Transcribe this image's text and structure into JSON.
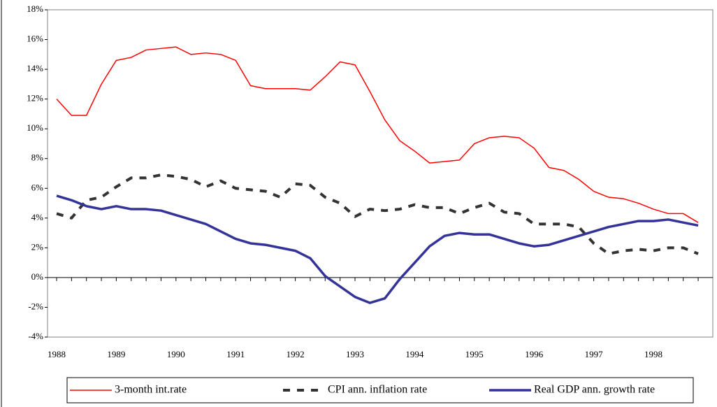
{
  "chart_data": {
    "type": "line",
    "categories": [
      "1988",
      null,
      null,
      null,
      "1989",
      null,
      null,
      null,
      "1990",
      null,
      null,
      null,
      "1991",
      null,
      null,
      null,
      "1992",
      null,
      null,
      null,
      "1993",
      null,
      null,
      null,
      "1994",
      null,
      null,
      null,
      "1995",
      null,
      null,
      null,
      "1996",
      null,
      null,
      null,
      "1997",
      null,
      null,
      null,
      "1998",
      null,
      null,
      null
    ],
    "series": [
      {
        "name": "3-month int.rate",
        "color": "#ff0000",
        "values": [
          12.0,
          10.9,
          10.9,
          13.0,
          14.6,
          14.8,
          15.3,
          15.4,
          15.5,
          15.0,
          15.1,
          15.0,
          14.6,
          12.9,
          12.7,
          12.7,
          12.7,
          12.6,
          13.5,
          14.5,
          14.3,
          12.5,
          10.6,
          9.2,
          8.5,
          7.7,
          7.8,
          7.9,
          9.0,
          9.4,
          9.5,
          9.4,
          8.7,
          7.4,
          7.2,
          6.6,
          5.8,
          5.4,
          5.3,
          5.0,
          4.6,
          4.3,
          4.3,
          3.7
        ]
      },
      {
        "name": "CPI ann. inflation rate",
        "color": "#333333",
        "values": [
          4.3,
          4.0,
          5.2,
          5.4,
          6.1,
          6.7,
          6.7,
          6.9,
          6.8,
          6.6,
          6.1,
          6.5,
          6.0,
          5.9,
          5.8,
          5.4,
          6.3,
          6.2,
          5.4,
          5.0,
          4.1,
          4.6,
          4.5,
          4.6,
          4.9,
          4.7,
          4.7,
          4.3,
          4.7,
          5.0,
          4.4,
          4.3,
          3.6,
          3.6,
          3.6,
          3.4,
          2.3,
          1.6,
          1.8,
          1.9,
          1.8,
          2.0,
          2.0,
          1.6
        ]
      },
      {
        "name": "Real GDP ann. growth rate",
        "color": "#333399",
        "values": [
          5.5,
          5.2,
          4.8,
          4.6,
          4.8,
          4.6,
          4.6,
          4.5,
          4.2,
          3.9,
          3.6,
          3.1,
          2.6,
          2.3,
          2.2,
          2.0,
          1.8,
          1.3,
          0.1,
          -0.6,
          -1.3,
          -1.7,
          -1.4,
          -0.1,
          1.0,
          2.1,
          2.8,
          3.0,
          2.9,
          2.9,
          2.6,
          2.3,
          2.1,
          2.2,
          2.5,
          2.8,
          3.1,
          3.4,
          3.6,
          3.8,
          3.8,
          3.9,
          3.7,
          3.5
        ]
      }
    ],
    "ylim": [
      -4,
      18
    ],
    "yticks": [
      {
        "value": -4,
        "label": "-4%"
      },
      {
        "value": -2,
        "label": "-2%"
      },
      {
        "value": 0,
        "label": "0%"
      },
      {
        "value": 2,
        "label": "2%"
      },
      {
        "value": 4,
        "label": "4%"
      },
      {
        "value": 6,
        "label": "6%"
      },
      {
        "value": 8,
        "label": "8%"
      },
      {
        "value": 10,
        "label": "10%"
      },
      {
        "value": 12,
        "label": "12%"
      },
      {
        "value": 14,
        "label": "14%"
      },
      {
        "value": 16,
        "label": "16%"
      },
      {
        "value": 18,
        "label": "18%"
      }
    ],
    "legend": "bottom"
  }
}
